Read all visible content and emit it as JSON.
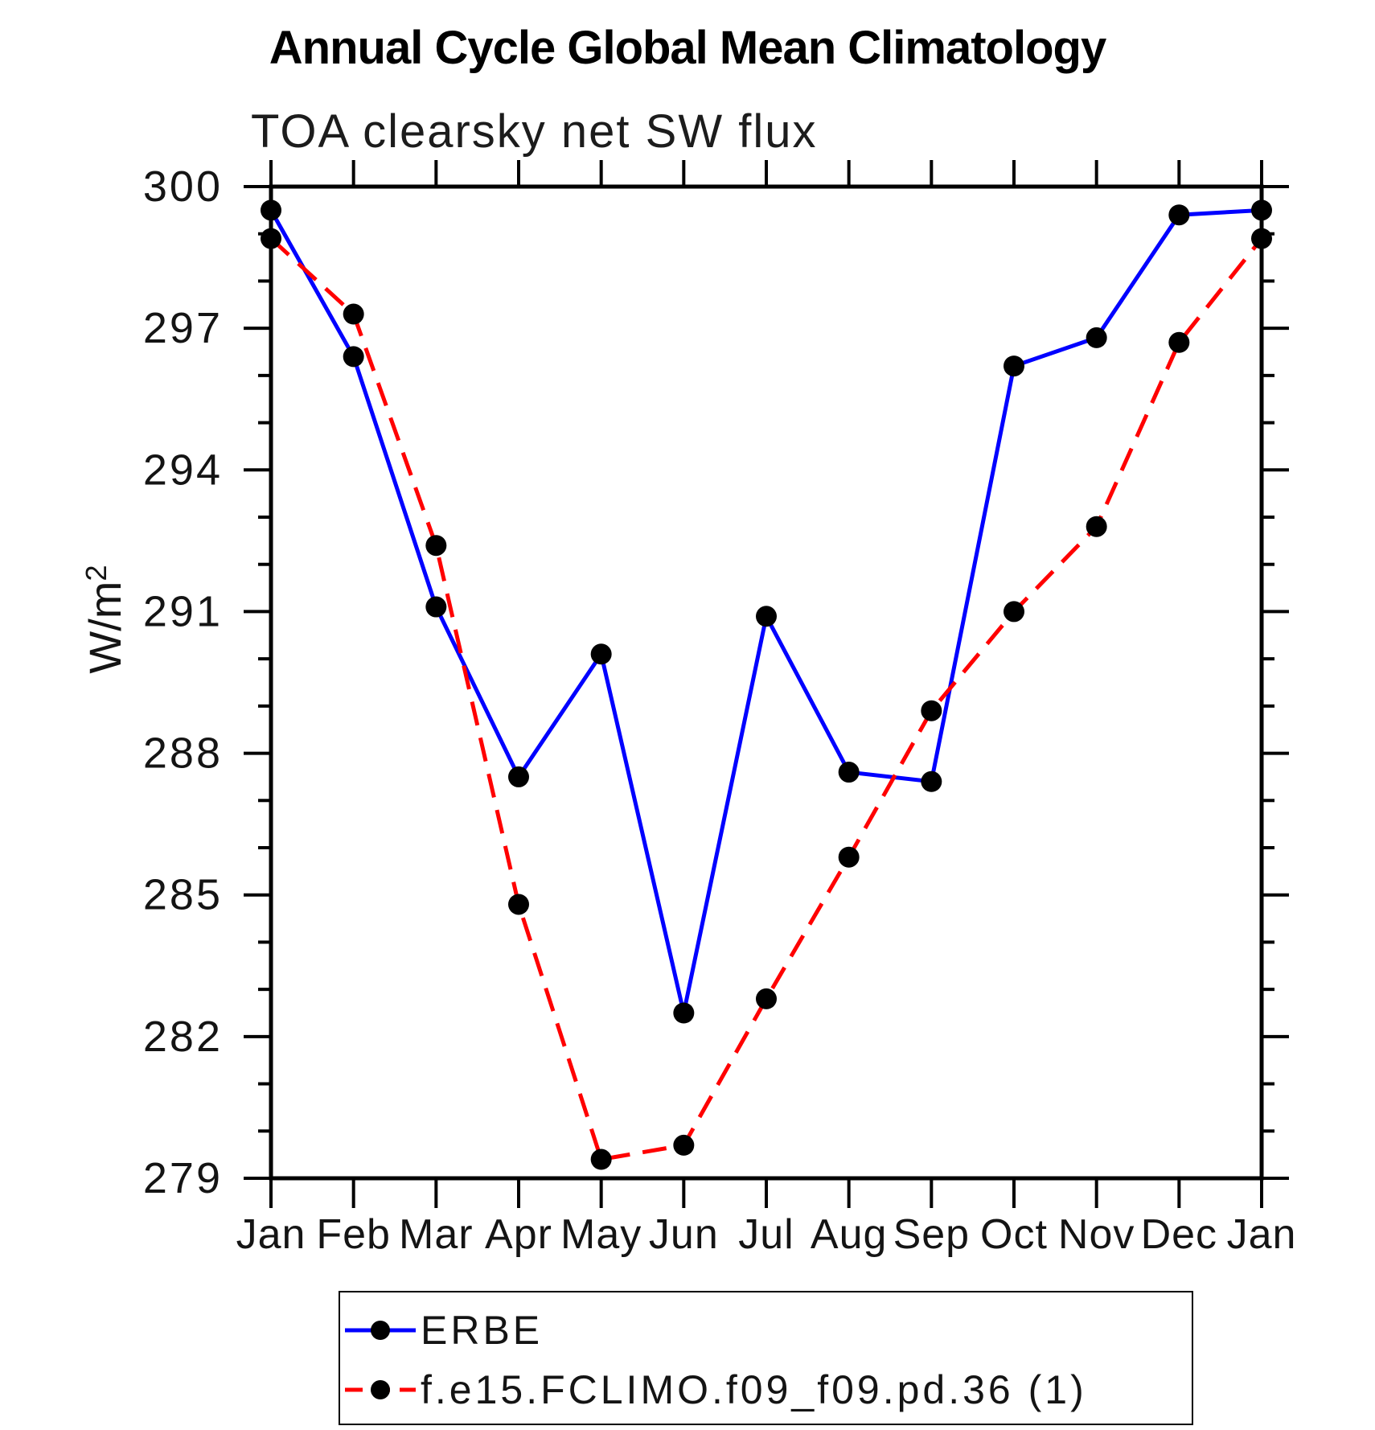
{
  "chart_data": {
    "type": "line",
    "title": "Annual Cycle Global Mean Climatology",
    "subtitle": "TOA clearsky net SW flux",
    "ylabel_base": "W/m",
    "ylabel_exponent": "2",
    "x_categories": [
      "Jan",
      "Feb",
      "Mar",
      "Apr",
      "May",
      "Jun",
      "Jul",
      "Aug",
      "Sep",
      "Oct",
      "Nov",
      "Dec",
      "Jan"
    ],
    "ylim": [
      279,
      300
    ],
    "yticks_major": [
      279,
      282,
      285,
      288,
      291,
      294,
      297,
      300
    ],
    "ytick_minor_step": 1,
    "grid": false,
    "marker_color": "#000000",
    "axis_color": "#000000",
    "legend_position": "bottom",
    "series": [
      {
        "name": "ERBE",
        "color": "#0000ff",
        "style": "solid",
        "marker": "circle",
        "values": [
          299.5,
          296.4,
          291.1,
          287.5,
          290.1,
          282.5,
          290.9,
          287.6,
          287.4,
          296.2,
          296.8,
          299.4,
          299.5
        ]
      },
      {
        "name": "f.e15.FCLIMO.f09_f09.pd.36 (1)",
        "color": "#ff0000",
        "style": "dashed",
        "marker": "circle",
        "values": [
          298.9,
          297.3,
          292.4,
          284.8,
          279.4,
          279.7,
          282.8,
          285.8,
          288.9,
          291.0,
          292.8,
          296.7,
          298.9
        ]
      }
    ]
  }
}
